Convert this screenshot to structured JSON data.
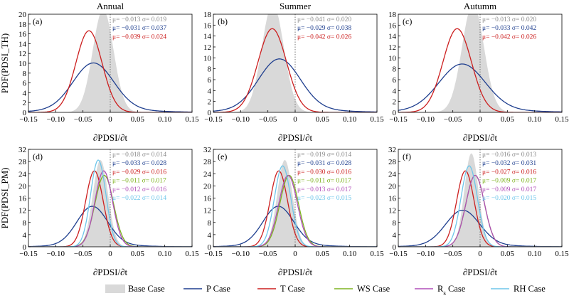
{
  "figure": {
    "col_titles": [
      "Annual",
      "Summer",
      "Autumm"
    ],
    "row_ylabels": [
      "PDF(PDSI_TH)",
      "PDF(PDSI_PM)"
    ],
    "xlabel": "∂PDSI/∂t",
    "x_ticks": [
      -0.15,
      -0.1,
      -0.05,
      0,
      0.05,
      0.1,
      0.15
    ],
    "x_tick_labels": [
      "−0.15",
      "−0.10",
      "−0.05",
      "0",
      "0.05",
      "0.10",
      "0.15"
    ]
  },
  "legend": [
    {
      "key": "base",
      "label": "Base Case",
      "color": "#d9d9d9",
      "style": "fill"
    },
    {
      "key": "p",
      "label": "P Case",
      "color": "#1f3f8f",
      "style": "line"
    },
    {
      "key": "t",
      "label": "T Case",
      "color": "#cc1f1f",
      "style": "line"
    },
    {
      "key": "ws",
      "label": "WS Case",
      "color": "#7fb321",
      "style": "line"
    },
    {
      "key": "rs",
      "label": "R",
      "sub": "s",
      "label_tail": " Case",
      "color": "#b04fb8",
      "style": "line"
    },
    {
      "key": "rh",
      "label": "RH Case",
      "color": "#6ec6ea",
      "style": "line"
    }
  ],
  "chart_data": [
    {
      "type": "area",
      "panel": "(a)",
      "xlim": [
        -0.15,
        0.15
      ],
      "ylim": [
        0,
        20
      ],
      "yticks": [
        0,
        2,
        4,
        6,
        8,
        10,
        12,
        14,
        16,
        18,
        20
      ],
      "series": [
        {
          "key": "base",
          "mu": "μ= −0.013",
          "sigma": "σ= 0.019",
          "mean": -0.013,
          "sd": 0.019
        },
        {
          "key": "p",
          "mu": "μ= −0.031",
          "sigma": "σ= 0.037",
          "mean": -0.031,
          "sd": 0.037
        },
        {
          "key": "t",
          "mu": "μ= −0.039",
          "sigma": "σ= 0.024",
          "mean": -0.039,
          "sd": 0.024
        }
      ]
    },
    {
      "type": "area",
      "panel": "(b)",
      "xlim": [
        -0.15,
        0.15
      ],
      "ylim": [
        0,
        18
      ],
      "yticks": [
        0,
        2,
        4,
        6,
        8,
        10,
        12,
        14,
        16,
        18
      ],
      "series": [
        {
          "key": "base",
          "mu": "μ= −0.041",
          "sigma": "σ= 0.020",
          "mean": -0.041,
          "sd": 0.02
        },
        {
          "key": "p",
          "mu": "μ= −0.029",
          "sigma": "σ= 0.038",
          "mean": -0.029,
          "sd": 0.038
        },
        {
          "key": "t",
          "mu": "μ= −0.042",
          "sigma": "σ= 0.026",
          "mean": -0.042,
          "sd": 0.026
        }
      ]
    },
    {
      "type": "area",
      "panel": "(c)",
      "xlim": [
        -0.15,
        0.15
      ],
      "ylim": [
        0,
        18
      ],
      "yticks": [
        0,
        2,
        4,
        6,
        8,
        10,
        12,
        14,
        16,
        18
      ],
      "series": [
        {
          "key": "base",
          "mu": "μ= −0.013",
          "sigma": "σ= 0.020",
          "mean": -0.013,
          "sd": 0.02
        },
        {
          "key": "p",
          "mu": "μ= −0.033",
          "sigma": "σ= 0.042",
          "mean": -0.033,
          "sd": 0.042
        },
        {
          "key": "t",
          "mu": "μ= −0.042",
          "sigma": "σ= 0.026",
          "mean": -0.042,
          "sd": 0.026
        }
      ]
    },
    {
      "type": "area",
      "panel": "(d)",
      "xlim": [
        -0.15,
        0.15
      ],
      "ylim": [
        0,
        32
      ],
      "yticks": [
        0,
        4,
        8,
        12,
        16,
        20,
        24,
        28,
        32
      ],
      "series": [
        {
          "key": "base",
          "mu": "μ= −0.018",
          "sigma": "σ= 0.014",
          "mean": -0.018,
          "sd": 0.014
        },
        {
          "key": "p",
          "mu": "μ= −0.033",
          "sigma": "σ= 0.028",
          "mean": -0.033,
          "sd": 0.028
        },
        {
          "key": "t",
          "mu": "μ= −0.029",
          "sigma": "σ= 0.016",
          "mean": -0.029,
          "sd": 0.016
        },
        {
          "key": "ws",
          "mu": "μ= −0.011",
          "sigma": "σ= 0.017",
          "mean": -0.011,
          "sd": 0.017
        },
        {
          "key": "rs",
          "mu": "μ= −0.012",
          "sigma": "σ= 0.016",
          "mean": -0.012,
          "sd": 0.016
        },
        {
          "key": "rh",
          "mu": "μ= −0.022",
          "sigma": "σ= 0.014",
          "mean": -0.022,
          "sd": 0.014
        }
      ]
    },
    {
      "type": "area",
      "panel": "(e)",
      "xlim": [
        -0.15,
        0.15
      ],
      "ylim": [
        0,
        32
      ],
      "yticks": [
        0,
        4,
        8,
        12,
        16,
        20,
        24,
        28,
        32
      ],
      "series": [
        {
          "key": "base",
          "mu": "μ= −0.019",
          "sigma": "σ= 0.014",
          "mean": -0.019,
          "sd": 0.014
        },
        {
          "key": "p",
          "mu": "μ= −0.031",
          "sigma": "σ= 0.028",
          "mean": -0.031,
          "sd": 0.028
        },
        {
          "key": "t",
          "mu": "μ= −0.030",
          "sigma": "σ= 0.016",
          "mean": -0.03,
          "sd": 0.016
        },
        {
          "key": "ws",
          "mu": "μ= −0.011",
          "sigma": "σ= 0.017",
          "mean": -0.011,
          "sd": 0.017
        },
        {
          "key": "rs",
          "mu": "μ= −0.013",
          "sigma": "σ= 0.017",
          "mean": -0.013,
          "sd": 0.017
        },
        {
          "key": "rh",
          "mu": "μ= −0.023",
          "sigma": "σ= 0.015",
          "mean": -0.023,
          "sd": 0.015
        }
      ]
    },
    {
      "type": "area",
      "panel": "(f)",
      "xlim": [
        -0.15,
        0.15
      ],
      "ylim": [
        0,
        32
      ],
      "yticks": [
        0,
        4,
        8,
        12,
        16,
        20,
        24,
        28,
        32
      ],
      "series": [
        {
          "key": "base",
          "mu": "μ= −0.016",
          "sigma": "σ= 0.013",
          "mean": -0.016,
          "sd": 0.013
        },
        {
          "key": "p",
          "mu": "μ= −0.032",
          "sigma": "σ= 0.031",
          "mean": -0.032,
          "sd": 0.031
        },
        {
          "key": "t",
          "mu": "μ= −0.027",
          "sigma": "σ= 0.016",
          "mean": -0.027,
          "sd": 0.016
        },
        {
          "key": "ws",
          "mu": "μ= −0.009",
          "sigma": "σ= 0.017",
          "mean": -0.009,
          "sd": 0.017
        },
        {
          "key": "rs",
          "mu": "μ= −0.009",
          "sigma": "σ= 0.017",
          "mean": -0.009,
          "sd": 0.017
        },
        {
          "key": "rh",
          "mu": "μ= −0.020",
          "sigma": "σ= 0.015",
          "mean": -0.02,
          "sd": 0.015
        }
      ]
    }
  ]
}
